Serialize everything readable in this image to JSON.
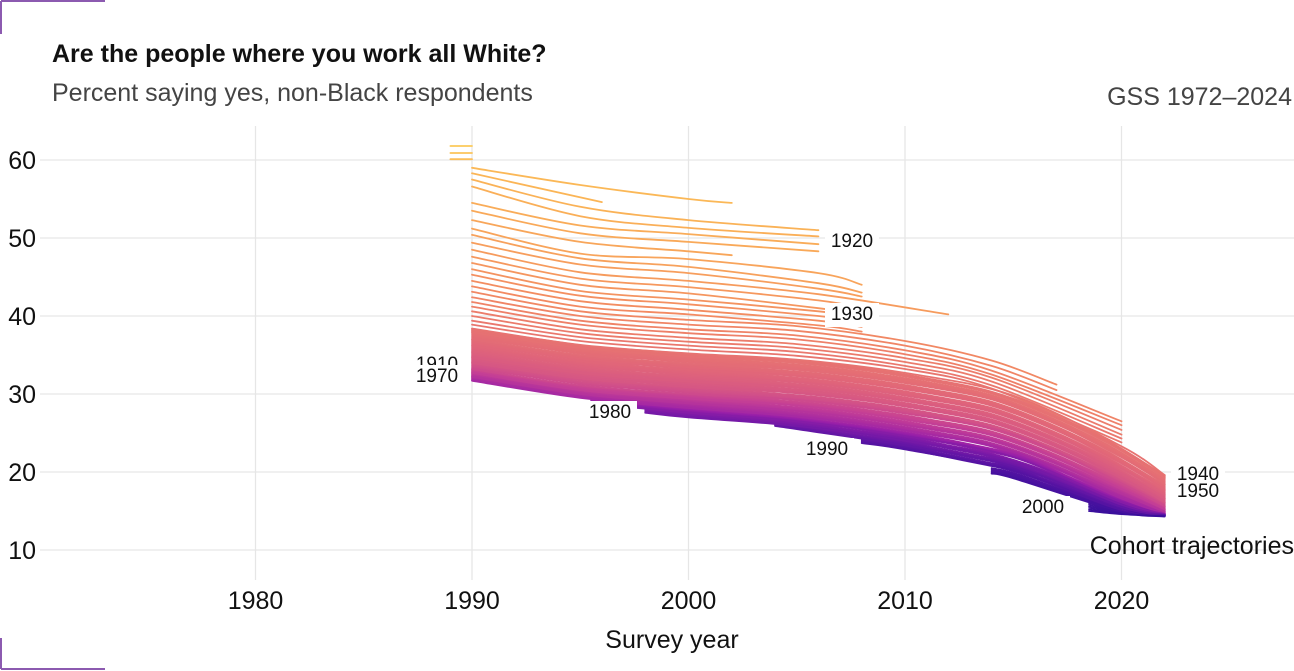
{
  "chart_data": {
    "type": "line",
    "title": "Are the people where you work all White?",
    "subtitle": "Percent saying yes, non-Black respondents",
    "caption": "GSS 1972–2024",
    "xlabel": "Survey year",
    "ylabel": "",
    "xlim": [
      1971,
      2028
    ],
    "ylim": [
      10,
      62
    ],
    "xticks": [
      "1980",
      "1990",
      "2000",
      "2010",
      "2020"
    ],
    "yticks": [
      "10",
      "20",
      "30",
      "40",
      "50",
      "60"
    ],
    "grid": true,
    "annotation": "Cohort trajectories",
    "cohort_labels": [
      "1910",
      "1920",
      "1930",
      "1940",
      "1950",
      "1970",
      "1980",
      "1990",
      "2000"
    ],
    "cohort_range": [
      1900,
      2004
    ],
    "colormap": [
      "#fde25f",
      "#fbb556",
      "#f38b62",
      "#e0657a",
      "#c53f95",
      "#9a20a8",
      "#6616a6",
      "#3a0f9c"
    ],
    "series": [
      {
        "cohort": 1908,
        "x": [
          1989,
          1990
        ],
        "y": [
          61.8,
          61.8
        ]
      },
      {
        "cohort": 1910,
        "x": [
          1989,
          1990
        ],
        "y": [
          60.9,
          60.9
        ]
      },
      {
        "cohort": 1912,
        "x": [
          1989,
          1990
        ],
        "y": [
          60.1,
          60.1
        ]
      },
      {
        "cohort": 1914,
        "x": [
          1990,
          1995,
          2000,
          2002
        ],
        "y": [
          59.0,
          56.8,
          55.0,
          54.5
        ]
      },
      {
        "cohort": 1915,
        "x": [
          1990,
          1996
        ],
        "y": [
          58.3,
          54.6
        ]
      },
      {
        "cohort": 1916,
        "x": [
          1990,
          1995,
          2000,
          2006
        ],
        "y": [
          57.5,
          54.0,
          52.3,
          51.0
        ]
      },
      {
        "cohort": 1917,
        "x": [
          1990,
          1995,
          2000,
          2006
        ],
        "y": [
          56.6,
          52.8,
          51.3,
          50.2
        ]
      },
      {
        "cohort": 1918,
        "x": [
          1990,
          1995,
          2000,
          2006
        ],
        "y": [
          54.5,
          51.6,
          50.5,
          49.2
        ]
      },
      {
        "cohort": 1919,
        "x": [
          1990,
          1995,
          2000,
          2006
        ],
        "y": [
          53.5,
          50.6,
          49.5,
          48.3
        ]
      },
      {
        "cohort": 1920,
        "x": [
          1990,
          1995,
          2000,
          2002
        ],
        "y": [
          52.3,
          49.5,
          48.3,
          47.8
        ]
      },
      {
        "cohort": 1921,
        "x": [
          1990,
          1995,
          2000,
          2006,
          2008
        ],
        "y": [
          51.2,
          48.0,
          47.3,
          45.5,
          44.0
        ]
      },
      {
        "cohort": 1922,
        "x": [
          1990,
          1995,
          2000,
          2006,
          2008
        ],
        "y": [
          50.4,
          47.4,
          46.3,
          44.2,
          43.0
        ]
      },
      {
        "cohort": 1923,
        "x": [
          1990,
          1995,
          2000,
          2006,
          2008
        ],
        "y": [
          49.4,
          46.6,
          45.5,
          43.5,
          42.5
        ]
      },
      {
        "cohort": 1924,
        "x": [
          1990,
          1995,
          2000,
          2006,
          2012
        ],
        "y": [
          48.5,
          45.6,
          44.5,
          42.8,
          40.2
        ]
      },
      {
        "cohort": 1925,
        "x": [
          1990,
          1995,
          2000,
          2006,
          2008
        ],
        "y": [
          47.6,
          44.8,
          43.7,
          42.0,
          41.0
        ]
      },
      {
        "cohort": 1926,
        "x": [
          1990,
          1995,
          2000,
          2006,
          2008
        ],
        "y": [
          46.8,
          44.0,
          42.9,
          41.0,
          40.2
        ]
      },
      {
        "cohort": 1927,
        "x": [
          1990,
          1995,
          2000,
          2006,
          2008
        ],
        "y": [
          46.0,
          43.2,
          42.1,
          40.6,
          39.8
        ]
      },
      {
        "cohort": 1928,
        "x": [
          1990,
          1995,
          2000,
          2006,
          2008
        ],
        "y": [
          45.3,
          42.6,
          41.5,
          40.0,
          39.2
        ]
      },
      {
        "cohort": 1929,
        "x": [
          1990,
          1995,
          2000,
          2006,
          2008
        ],
        "y": [
          44.5,
          41.9,
          40.8,
          39.4,
          38.6
        ]
      },
      {
        "cohort": 1930,
        "x": [
          1990,
          1995,
          2000,
          2006,
          2008
        ],
        "y": [
          43.8,
          41.2,
          40.2,
          38.8,
          38.0
        ]
      },
      {
        "cohort": 1931,
        "x": [
          1990,
          1995,
          2000,
          2005,
          2010,
          2014,
          2017
        ],
        "y": [
          43.1,
          40.6,
          39.5,
          38.7,
          36.8,
          34.3,
          31.2
        ]
      },
      {
        "cohort": 1932,
        "x": [
          1990,
          1995,
          2000,
          2005,
          2010,
          2014,
          2017
        ],
        "y": [
          42.4,
          40.0,
          38.9,
          38.1,
          36.2,
          33.6,
          30.5
        ]
      },
      {
        "cohort": 1933,
        "x": [
          1990,
          1995,
          2000,
          2005,
          2010,
          2014,
          2020
        ],
        "y": [
          41.8,
          39.4,
          38.3,
          37.5,
          35.6,
          33.0,
          26.5
        ]
      },
      {
        "cohort": 1934,
        "x": [
          1990,
          1995,
          2000,
          2005,
          2010,
          2014,
          2020
        ],
        "y": [
          41.2,
          38.9,
          37.8,
          37.0,
          35.1,
          32.5,
          26.0
        ]
      },
      {
        "cohort": 1935,
        "x": [
          1990,
          1995,
          2000,
          2005,
          2010,
          2014,
          2020
        ],
        "y": [
          40.6,
          38.3,
          37.2,
          36.4,
          34.6,
          32.1,
          25.4
        ]
      },
      {
        "cohort": 1936,
        "x": [
          1990,
          1995,
          2000,
          2005,
          2010,
          2014,
          2020
        ],
        "y": [
          40.0,
          37.8,
          36.7,
          35.9,
          34.1,
          31.6,
          24.8
        ]
      },
      {
        "cohort": 1937,
        "x": [
          1990,
          1995,
          2000,
          2005,
          2010,
          2014,
          2020
        ],
        "y": [
          39.4,
          37.3,
          36.2,
          35.4,
          33.6,
          31.1,
          24.3
        ]
      },
      {
        "cohort": 1938,
        "x": [
          1990,
          1995,
          2000,
          2005,
          2010,
          2014,
          2020
        ],
        "y": [
          38.9,
          36.8,
          35.7,
          34.9,
          33.2,
          30.7,
          23.8
        ]
      },
      {
        "cohort": 1939,
        "x": [
          1990,
          1995,
          2000,
          2005,
          2010,
          2015,
          2020,
          2022
        ],
        "y": [
          38.4,
          36.3,
          35.2,
          34.4,
          32.7,
          29.8,
          23.3,
          19.6
        ]
      },
      {
        "cohort": 1940,
        "x": [
          1990,
          1995,
          2000,
          2005,
          2010,
          2015,
          2020,
          2022
        ],
        "y": [
          37.9,
          35.9,
          34.8,
          34.0,
          32.3,
          29.4,
          22.8,
          19.2
        ]
      },
      {
        "cohort": 1942,
        "x": [
          1990,
          1995,
          2000,
          2005,
          2010,
          2015,
          2020,
          2022
        ],
        "y": [
          37.0,
          35.0,
          33.9,
          33.1,
          31.4,
          28.6,
          21.9,
          18.4
        ]
      },
      {
        "cohort": 1944,
        "x": [
          1990,
          1995,
          2000,
          2005,
          2010,
          2015,
          2020,
          2022
        ],
        "y": [
          36.2,
          34.2,
          33.1,
          32.3,
          30.6,
          27.8,
          21.1,
          17.7
        ]
      },
      {
        "cohort": 1946,
        "x": [
          1990,
          1995,
          2000,
          2005,
          2010,
          2015,
          2020,
          2022
        ],
        "y": [
          35.4,
          33.4,
          32.3,
          31.5,
          29.8,
          27.0,
          20.4,
          17.1
        ]
      },
      {
        "cohort": 1948,
        "x": [
          1990,
          1995,
          2000,
          2005,
          2010,
          2015,
          2020,
          2022
        ],
        "y": [
          34.7,
          32.7,
          31.6,
          30.8,
          29.1,
          26.3,
          19.8,
          16.6
        ]
      },
      {
        "cohort": 1950,
        "x": [
          1990,
          1995,
          2000,
          2005,
          2010,
          2015,
          2020,
          2022
        ],
        "y": [
          34.0,
          32.0,
          30.9,
          30.1,
          28.4,
          25.6,
          19.2,
          16.1
        ]
      },
      {
        "cohort": 1955,
        "x": [
          1990,
          1995,
          2000,
          2005,
          2010,
          2015,
          2020,
          2022
        ],
        "y": [
          33.2,
          31.1,
          30.0,
          29.2,
          27.5,
          24.8,
          18.5,
          15.6
        ]
      },
      {
        "cohort": 1960,
        "x": [
          1990,
          1995,
          2000,
          2005,
          2010,
          2015,
          2020,
          2022
        ],
        "y": [
          32.7,
          30.5,
          29.4,
          28.5,
          26.7,
          24.0,
          17.8,
          15.2
        ]
      },
      {
        "cohort": 1965,
        "x": [
          1990,
          1995,
          2000,
          2005,
          2010,
          2015,
          2020,
          2022
        ],
        "y": [
          32.2,
          30.0,
          28.8,
          27.8,
          26.0,
          23.3,
          17.2,
          14.9
        ]
      },
      {
        "cohort": 1970,
        "x": [
          1990,
          1995,
          2000,
          2005,
          2010,
          2015,
          2020,
          2022
        ],
        "y": [
          31.7,
          29.5,
          28.2,
          27.1,
          25.3,
          22.6,
          16.6,
          14.7
        ]
      },
      {
        "cohort": 1980,
        "x": [
          1995.5,
          2000,
          2005,
          2010,
          2015,
          2020,
          2022
        ],
        "y": [
          28.8,
          27.6,
          26.5,
          24.6,
          21.9,
          16.1,
          14.6
        ]
      },
      {
        "cohort": 1985,
        "x": [
          1998,
          2000,
          2005,
          2010,
          2015,
          2020,
          2022
        ],
        "y": [
          27.6,
          27.0,
          25.9,
          24.0,
          21.3,
          15.8,
          14.5
        ]
      },
      {
        "cohort": 1990,
        "x": [
          2004,
          2005,
          2010,
          2015,
          2020,
          2022
        ],
        "y": [
          25.9,
          25.5,
          23.4,
          20.7,
          15.5,
          14.5
        ]
      },
      {
        "cohort": 1995,
        "x": [
          2008,
          2010,
          2015,
          2020,
          2022
        ],
        "y": [
          23.7,
          22.9,
          20.1,
          15.1,
          14.4
        ]
      },
      {
        "cohort": 2000,
        "x": [
          2014,
          2015,
          2020,
          2022
        ],
        "y": [
          19.8,
          19.2,
          14.9,
          14.4
        ]
      },
      {
        "cohort": 2004,
        "x": [
          2018.5,
          2020,
          2022
        ],
        "y": [
          15.0,
          14.6,
          14.3
        ]
      }
    ]
  }
}
